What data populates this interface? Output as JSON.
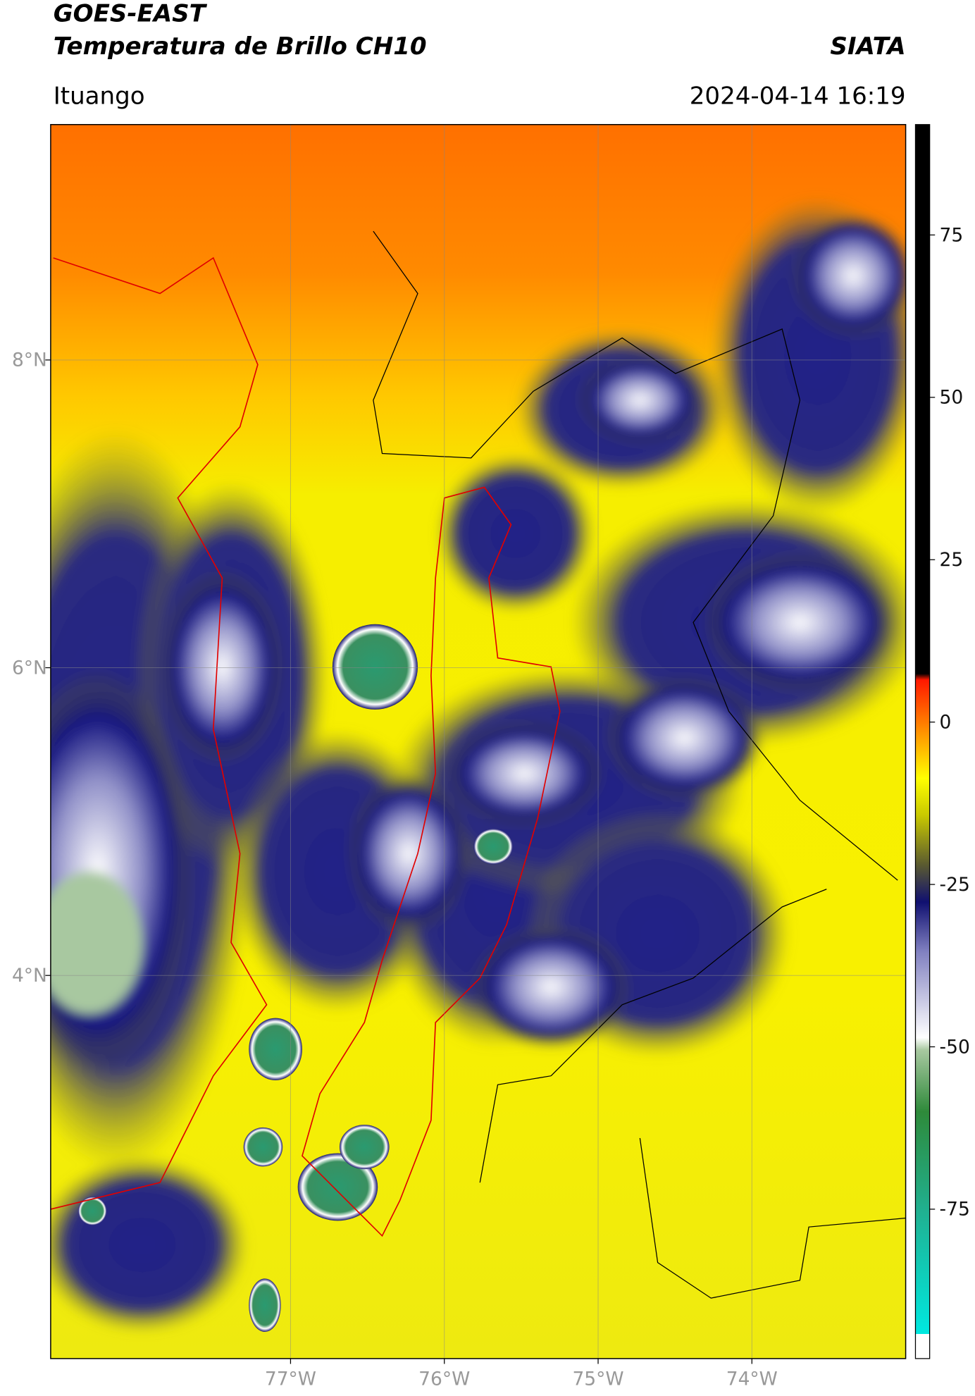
{
  "header": {
    "satellite": "GOES-EAST",
    "product": "Temperatura de Brillo CH10",
    "organization": "SIATA",
    "region": "Ituango",
    "datetime": "2024-04-14 16:19"
  },
  "map": {
    "xlim": [
      -78.56,
      -73.0
    ],
    "ylim": [
      1.51,
      9.53
    ],
    "xticks": [
      {
        "value": -77,
        "label": "77°W"
      },
      {
        "value": -76,
        "label": "76°W"
      },
      {
        "value": -75,
        "label": "75°W"
      },
      {
        "value": -74,
        "label": "74°W"
      }
    ],
    "yticks": [
      {
        "value": 8,
        "label": "8°N"
      },
      {
        "value": 6,
        "label": "6°N"
      },
      {
        "value": 4,
        "label": "4°N"
      }
    ],
    "grid": true
  },
  "colorbar": {
    "lim": [
      -98,
      92
    ],
    "ticks": [
      75,
      50,
      25,
      0,
      -25,
      -50,
      -75
    ]
  }
}
